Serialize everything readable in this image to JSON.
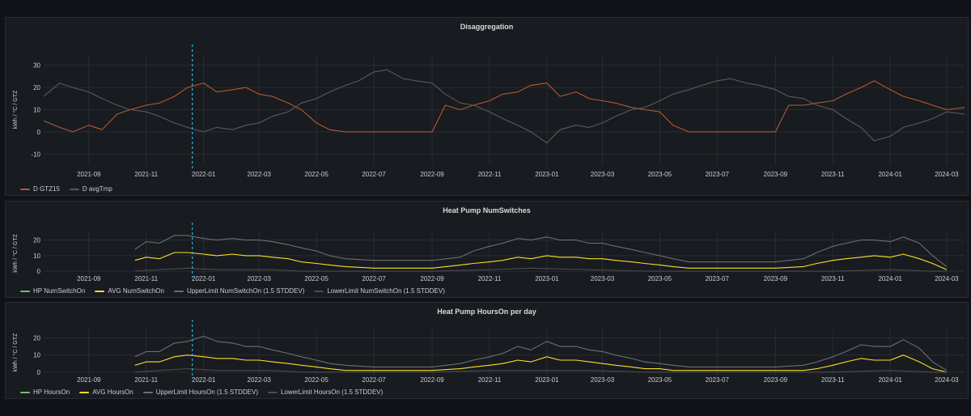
{
  "panels": [
    {
      "title": "Disaggregation",
      "ylabel": "kWh / °C / GTZ",
      "legend": [
        {
          "name": "D GTZ15",
          "color": "#b35a32"
        },
        {
          "name": "D avgTmp",
          "color": "#5a5a5e"
        }
      ]
    },
    {
      "title": "Heat Pump NumSwitches",
      "ylabel": "kWh / °C / GTZ",
      "legend": [
        {
          "name": "HP NumSwitchOn",
          "color": "#73bf69"
        },
        {
          "name": "AVG NumSwitchOn",
          "color": "#fade2a"
        },
        {
          "name": "UpperLimit NumSwitchOn (1.5 STDDEV)",
          "color": "#6e6e72"
        },
        {
          "name": "LowerLimit NumSwitchOn (1.5 STDDEV)",
          "color": "#4a4a4e"
        }
      ]
    },
    {
      "title": "Heat Pump HoursOn per day",
      "ylabel": "kWh / °C / GTZ",
      "legend": [
        {
          "name": "HP HoursOn",
          "color": "#73bf69"
        },
        {
          "name": "AVG HoursOn",
          "color": "#fade2a"
        },
        {
          "name": "UpperLimit HoursOn (1.5 STDDEV)",
          "color": "#6e6e72"
        },
        {
          "name": "LowerLimit HoursOn (1.5 STDDEV)",
          "color": "#4a4a4e"
        }
      ]
    }
  ],
  "colors": {
    "marker": "#33b5e5",
    "grid": "#2a2c31",
    "tick": "#ccccdc"
  },
  "chart_data": [
    {
      "type": "line",
      "title": "Disaggregation",
      "ylabel": "kWh / °C / GTZ",
      "x_ticks": [
        "2021-09",
        "2021-11",
        "2022-01",
        "2022-03",
        "2022-05",
        "2022-07",
        "2022-09",
        "2022-11",
        "2023-01",
        "2023-03",
        "2023-05",
        "2023-07",
        "2023-09",
        "2023-11",
        "2024-01",
        "2024-03"
      ],
      "xlim": [
        "2021-07-15",
        "2024-03-20"
      ],
      "ylim": [
        -15,
        35
      ],
      "y_ticks": [
        -10,
        0,
        10,
        20,
        30
      ],
      "marker_date": "2021-12-20",
      "grid": true,
      "legend_position": "bottom-left",
      "series": [
        {
          "name": "D GTZ15",
          "color": "#b35a32",
          "x": [
            "2021-07-15",
            "2021-08-01",
            "2021-08-15",
            "2021-09-01",
            "2021-09-15",
            "2021-10-01",
            "2021-10-15",
            "2021-11-01",
            "2021-11-15",
            "2021-12-01",
            "2021-12-15",
            "2022-01-01",
            "2022-01-15",
            "2022-02-01",
            "2022-02-15",
            "2022-03-01",
            "2022-03-15",
            "2022-04-01",
            "2022-04-15",
            "2022-05-01",
            "2022-05-15",
            "2022-06-01",
            "2022-07-01",
            "2022-08-01",
            "2022-09-01",
            "2022-09-15",
            "2022-10-01",
            "2022-10-15",
            "2022-11-01",
            "2022-11-15",
            "2022-12-01",
            "2022-12-15",
            "2023-01-01",
            "2023-01-15",
            "2023-02-01",
            "2023-02-15",
            "2023-03-01",
            "2023-03-15",
            "2023-04-01",
            "2023-04-15",
            "2023-05-01",
            "2023-05-15",
            "2023-06-01",
            "2023-07-01",
            "2023-08-01",
            "2023-09-01",
            "2023-09-15",
            "2023-10-01",
            "2023-10-15",
            "2023-11-01",
            "2023-11-15",
            "2023-12-01",
            "2023-12-15",
            "2024-01-01",
            "2024-01-15",
            "2024-02-01",
            "2024-02-15",
            "2024-03-01",
            "2024-03-20"
          ],
          "y": [
            5,
            2,
            0,
            3,
            1,
            8,
            10,
            12,
            13,
            16,
            20,
            22,
            18,
            19,
            20,
            17,
            16,
            13,
            10,
            4,
            1,
            0,
            0,
            0,
            0,
            12,
            10,
            12,
            14,
            17,
            18,
            21,
            22,
            16,
            18,
            15,
            14,
            13,
            11,
            10,
            9,
            3,
            0,
            0,
            0,
            0,
            12,
            12,
            13,
            14,
            17,
            20,
            23,
            19,
            16,
            14,
            12,
            10,
            11
          ]
        },
        {
          "name": "D avgTmp",
          "color": "#5a5a5e",
          "x": [
            "2021-07-15",
            "2021-08-01",
            "2021-08-15",
            "2021-09-01",
            "2021-09-15",
            "2021-10-01",
            "2021-10-15",
            "2021-11-01",
            "2021-11-15",
            "2021-12-01",
            "2021-12-15",
            "2022-01-01",
            "2022-01-15",
            "2022-02-01",
            "2022-02-15",
            "2022-03-01",
            "2022-03-15",
            "2022-04-01",
            "2022-04-15",
            "2022-05-01",
            "2022-05-15",
            "2022-06-01",
            "2022-06-15",
            "2022-07-01",
            "2022-07-15",
            "2022-08-01",
            "2022-08-15",
            "2022-09-01",
            "2022-09-15",
            "2022-10-01",
            "2022-10-15",
            "2022-11-01",
            "2022-11-15",
            "2022-12-01",
            "2022-12-15",
            "2023-01-01",
            "2023-01-15",
            "2023-02-01",
            "2023-02-15",
            "2023-03-01",
            "2023-03-15",
            "2023-04-01",
            "2023-04-15",
            "2023-05-01",
            "2023-05-15",
            "2023-06-01",
            "2023-06-15",
            "2023-07-01",
            "2023-07-15",
            "2023-08-01",
            "2023-08-15",
            "2023-09-01",
            "2023-09-15",
            "2023-10-01",
            "2023-10-15",
            "2023-11-01",
            "2023-11-15",
            "2023-12-01",
            "2023-12-15",
            "2024-01-01",
            "2024-01-15",
            "2024-02-01",
            "2024-02-15",
            "2024-03-01",
            "2024-03-20"
          ],
          "y": [
            16,
            22,
            20,
            18,
            15,
            12,
            10,
            9,
            7,
            4,
            2,
            0,
            2,
            1,
            3,
            4,
            7,
            9,
            13,
            15,
            18,
            21,
            23,
            27,
            28,
            24,
            23,
            22,
            17,
            13,
            12,
            9,
            6,
            3,
            0,
            -5,
            1,
            3,
            2,
            4,
            7,
            10,
            11,
            14,
            17,
            19,
            21,
            23,
            24,
            22,
            21,
            19,
            16,
            15,
            12,
            10,
            6,
            2,
            -4,
            -2,
            2,
            4,
            6,
            9,
            8
          ]
        }
      ]
    },
    {
      "type": "line",
      "title": "Heat Pump NumSwitches",
      "ylabel": "kWh / °C / GTZ",
      "x_ticks": [
        "2021-09",
        "2021-11",
        "2022-01",
        "2022-03",
        "2022-05",
        "2022-07",
        "2022-09",
        "2022-11",
        "2023-01",
        "2023-03",
        "2023-05",
        "2023-07",
        "2023-09",
        "2023-11",
        "2024-01",
        "2024-03"
      ],
      "xlim": [
        "2021-07-15",
        "2024-03-20"
      ],
      "ylim": [
        -2,
        25
      ],
      "y_ticks": [
        0,
        10,
        20
      ],
      "marker_date": "2021-12-20",
      "grid": true,
      "legend_position": "bottom-left",
      "series": [
        {
          "name": "AVG NumSwitchOn",
          "color": "#fade2a",
          "x": [
            "2021-10-20",
            "2021-11-01",
            "2021-11-15",
            "2021-12-01",
            "2021-12-15",
            "2022-01-01",
            "2022-01-15",
            "2022-02-01",
            "2022-02-15",
            "2022-03-01",
            "2022-03-15",
            "2022-04-01",
            "2022-04-15",
            "2022-05-01",
            "2022-05-15",
            "2022-06-01",
            "2022-07-01",
            "2022-08-01",
            "2022-09-01",
            "2022-10-01",
            "2022-10-15",
            "2022-11-01",
            "2022-11-15",
            "2022-12-01",
            "2022-12-15",
            "2023-01-01",
            "2023-01-15",
            "2023-02-01",
            "2023-02-15",
            "2023-03-01",
            "2023-03-15",
            "2023-04-01",
            "2023-04-15",
            "2023-05-01",
            "2023-05-15",
            "2023-06-01",
            "2023-07-01",
            "2023-08-01",
            "2023-09-01",
            "2023-10-01",
            "2023-10-15",
            "2023-11-01",
            "2023-11-15",
            "2023-12-01",
            "2023-12-15",
            "2024-01-01",
            "2024-01-15",
            "2024-02-01",
            "2024-02-15",
            "2024-03-01"
          ],
          "y": [
            7,
            9,
            8,
            12,
            12,
            11,
            10,
            11,
            10,
            10,
            9,
            8,
            6,
            5,
            4,
            3,
            2,
            2,
            2,
            4,
            5,
            6,
            7,
            9,
            8,
            10,
            9,
            9,
            8,
            8,
            7,
            6,
            5,
            4,
            3,
            2,
            2,
            2,
            2,
            3,
            5,
            7,
            8,
            9,
            10,
            9,
            11,
            8,
            5,
            1
          ]
        },
        {
          "name": "UpperLimit NumSwitchOn (1.5 STDDEV)",
          "color": "#6e6e72",
          "x": [
            "2021-10-20",
            "2021-11-01",
            "2021-11-15",
            "2021-12-01",
            "2021-12-15",
            "2022-01-01",
            "2022-01-15",
            "2022-02-01",
            "2022-02-15",
            "2022-03-01",
            "2022-03-15",
            "2022-04-01",
            "2022-04-15",
            "2022-05-01",
            "2022-05-15",
            "2022-06-01",
            "2022-07-01",
            "2022-08-01",
            "2022-09-01",
            "2022-10-01",
            "2022-10-15",
            "2022-11-01",
            "2022-11-15",
            "2022-12-01",
            "2022-12-15",
            "2023-01-01",
            "2023-01-15",
            "2023-02-01",
            "2023-02-15",
            "2023-03-01",
            "2023-03-15",
            "2023-04-01",
            "2023-04-15",
            "2023-05-01",
            "2023-05-15",
            "2023-06-01",
            "2023-07-01",
            "2023-08-01",
            "2023-09-01",
            "2023-10-01",
            "2023-10-15",
            "2023-11-01",
            "2023-11-15",
            "2023-12-01",
            "2023-12-15",
            "2024-01-01",
            "2024-01-15",
            "2024-02-01",
            "2024-02-15",
            "2024-03-01"
          ],
          "y": [
            14,
            19,
            18,
            23,
            23,
            21,
            20,
            21,
            20,
            20,
            19,
            17,
            15,
            13,
            10,
            8,
            7,
            7,
            7,
            9,
            13,
            16,
            18,
            21,
            20,
            22,
            20,
            20,
            18,
            18,
            16,
            14,
            12,
            10,
            8,
            6,
            6,
            6,
            6,
            8,
            12,
            16,
            18,
            20,
            20,
            19,
            22,
            18,
            10,
            3
          ]
        },
        {
          "name": "LowerLimit NumSwitchOn (1.5 STDDEV)",
          "color": "#4a4a4e",
          "x": [
            "2021-10-20",
            "2021-11-15",
            "2021-12-15",
            "2022-01-15",
            "2022-02-15",
            "2022-03-15",
            "2022-04-15",
            "2022-05-15",
            "2022-07-01",
            "2022-09-01",
            "2022-11-01",
            "2022-12-15",
            "2023-02-15",
            "2023-04-15",
            "2023-06-01",
            "2023-09-01",
            "2023-11-01",
            "2024-01-01",
            "2024-02-15",
            "2024-03-01"
          ],
          "y": [
            0,
            1,
            2,
            1,
            1,
            1,
            0,
            0,
            0,
            0,
            1,
            2,
            1,
            0,
            0,
            0,
            0,
            1,
            0,
            0
          ]
        }
      ]
    },
    {
      "type": "line",
      "title": "Heat Pump HoursOn per day",
      "ylabel": "kWh / °C / GTZ",
      "x_ticks": [
        "2021-09",
        "2021-11",
        "2022-01",
        "2022-03",
        "2022-05",
        "2022-07",
        "2022-09",
        "2022-11",
        "2023-01",
        "2023-03",
        "2023-05",
        "2023-07",
        "2023-09",
        "2023-11",
        "2024-01",
        "2024-03"
      ],
      "xlim": [
        "2021-07-15",
        "2024-03-20"
      ],
      "ylim": [
        -2,
        25
      ],
      "y_ticks": [
        0,
        10,
        20
      ],
      "marker_date": "2021-12-20",
      "grid": true,
      "legend_position": "bottom-left",
      "series": [
        {
          "name": "AVG HoursOn",
          "color": "#fade2a",
          "x": [
            "2021-10-20",
            "2021-11-01",
            "2021-11-15",
            "2021-12-01",
            "2021-12-15",
            "2022-01-01",
            "2022-01-15",
            "2022-02-01",
            "2022-02-15",
            "2022-03-01",
            "2022-03-15",
            "2022-04-01",
            "2022-04-15",
            "2022-05-01",
            "2022-05-15",
            "2022-06-01",
            "2022-07-01",
            "2022-08-01",
            "2022-09-01",
            "2022-10-01",
            "2022-10-15",
            "2022-11-01",
            "2022-11-15",
            "2022-12-01",
            "2022-12-15",
            "2023-01-01",
            "2023-01-15",
            "2023-02-01",
            "2023-02-15",
            "2023-03-01",
            "2023-03-15",
            "2023-04-01",
            "2023-04-15",
            "2023-05-01",
            "2023-05-15",
            "2023-06-01",
            "2023-07-01",
            "2023-08-01",
            "2023-09-01",
            "2023-10-01",
            "2023-10-15",
            "2023-11-01",
            "2023-11-15",
            "2023-12-01",
            "2023-12-15",
            "2024-01-01",
            "2024-01-15",
            "2024-02-01",
            "2024-02-15",
            "2024-03-01"
          ],
          "y": [
            4,
            6,
            6,
            9,
            10,
            9,
            8,
            8,
            7,
            7,
            6,
            5,
            4,
            3,
            2,
            1,
            1,
            1,
            1,
            2,
            3,
            4,
            5,
            7,
            6,
            9,
            7,
            7,
            6,
            5,
            4,
            3,
            2,
            2,
            1,
            1,
            1,
            1,
            1,
            1,
            2,
            4,
            6,
            8,
            7,
            7,
            10,
            6,
            2,
            0
          ]
        },
        {
          "name": "UpperLimit HoursOn (1.5 STDDEV)",
          "color": "#6e6e72",
          "x": [
            "2021-10-20",
            "2021-11-01",
            "2021-11-15",
            "2021-12-01",
            "2021-12-15",
            "2022-01-01",
            "2022-01-15",
            "2022-02-01",
            "2022-02-15",
            "2022-03-01",
            "2022-03-15",
            "2022-04-01",
            "2022-04-15",
            "2022-05-01",
            "2022-05-15",
            "2022-06-01",
            "2022-07-01",
            "2022-08-01",
            "2022-09-01",
            "2022-10-01",
            "2022-10-15",
            "2022-11-01",
            "2022-11-15",
            "2022-12-01",
            "2022-12-15",
            "2023-01-01",
            "2023-01-15",
            "2023-02-01",
            "2023-02-15",
            "2023-03-01",
            "2023-03-15",
            "2023-04-01",
            "2023-04-15",
            "2023-05-01",
            "2023-05-15",
            "2023-06-01",
            "2023-07-01",
            "2023-08-01",
            "2023-09-01",
            "2023-10-01",
            "2023-10-15",
            "2023-11-01",
            "2023-11-15",
            "2023-12-01",
            "2023-12-15",
            "2024-01-01",
            "2024-01-15",
            "2024-02-01",
            "2024-02-15",
            "2024-03-01"
          ],
          "y": [
            9,
            12,
            12,
            17,
            18,
            21,
            18,
            17,
            15,
            15,
            13,
            11,
            9,
            7,
            5,
            4,
            3,
            3,
            3,
            5,
            7,
            9,
            11,
            15,
            13,
            18,
            15,
            15,
            13,
            12,
            10,
            8,
            6,
            5,
            4,
            3,
            3,
            3,
            3,
            4,
            6,
            9,
            12,
            16,
            15,
            15,
            19,
            14,
            6,
            1
          ]
        },
        {
          "name": "LowerLimit HoursOn (1.5 STDDEV)",
          "color": "#4a4a4e",
          "x": [
            "2021-10-20",
            "2021-11-15",
            "2021-12-15",
            "2022-01-15",
            "2022-02-15",
            "2022-03-15",
            "2022-04-15",
            "2022-05-15",
            "2022-07-01",
            "2022-09-01",
            "2022-11-01",
            "2022-12-15",
            "2023-02-15",
            "2023-04-15",
            "2023-06-01",
            "2023-09-01",
            "2023-11-01",
            "2024-01-01",
            "2024-02-15",
            "2024-03-01"
          ],
          "y": [
            0,
            1,
            2,
            1,
            1,
            1,
            0,
            0,
            0,
            0,
            1,
            1,
            1,
            0,
            0,
            0,
            0,
            1,
            0,
            0
          ]
        }
      ]
    }
  ]
}
